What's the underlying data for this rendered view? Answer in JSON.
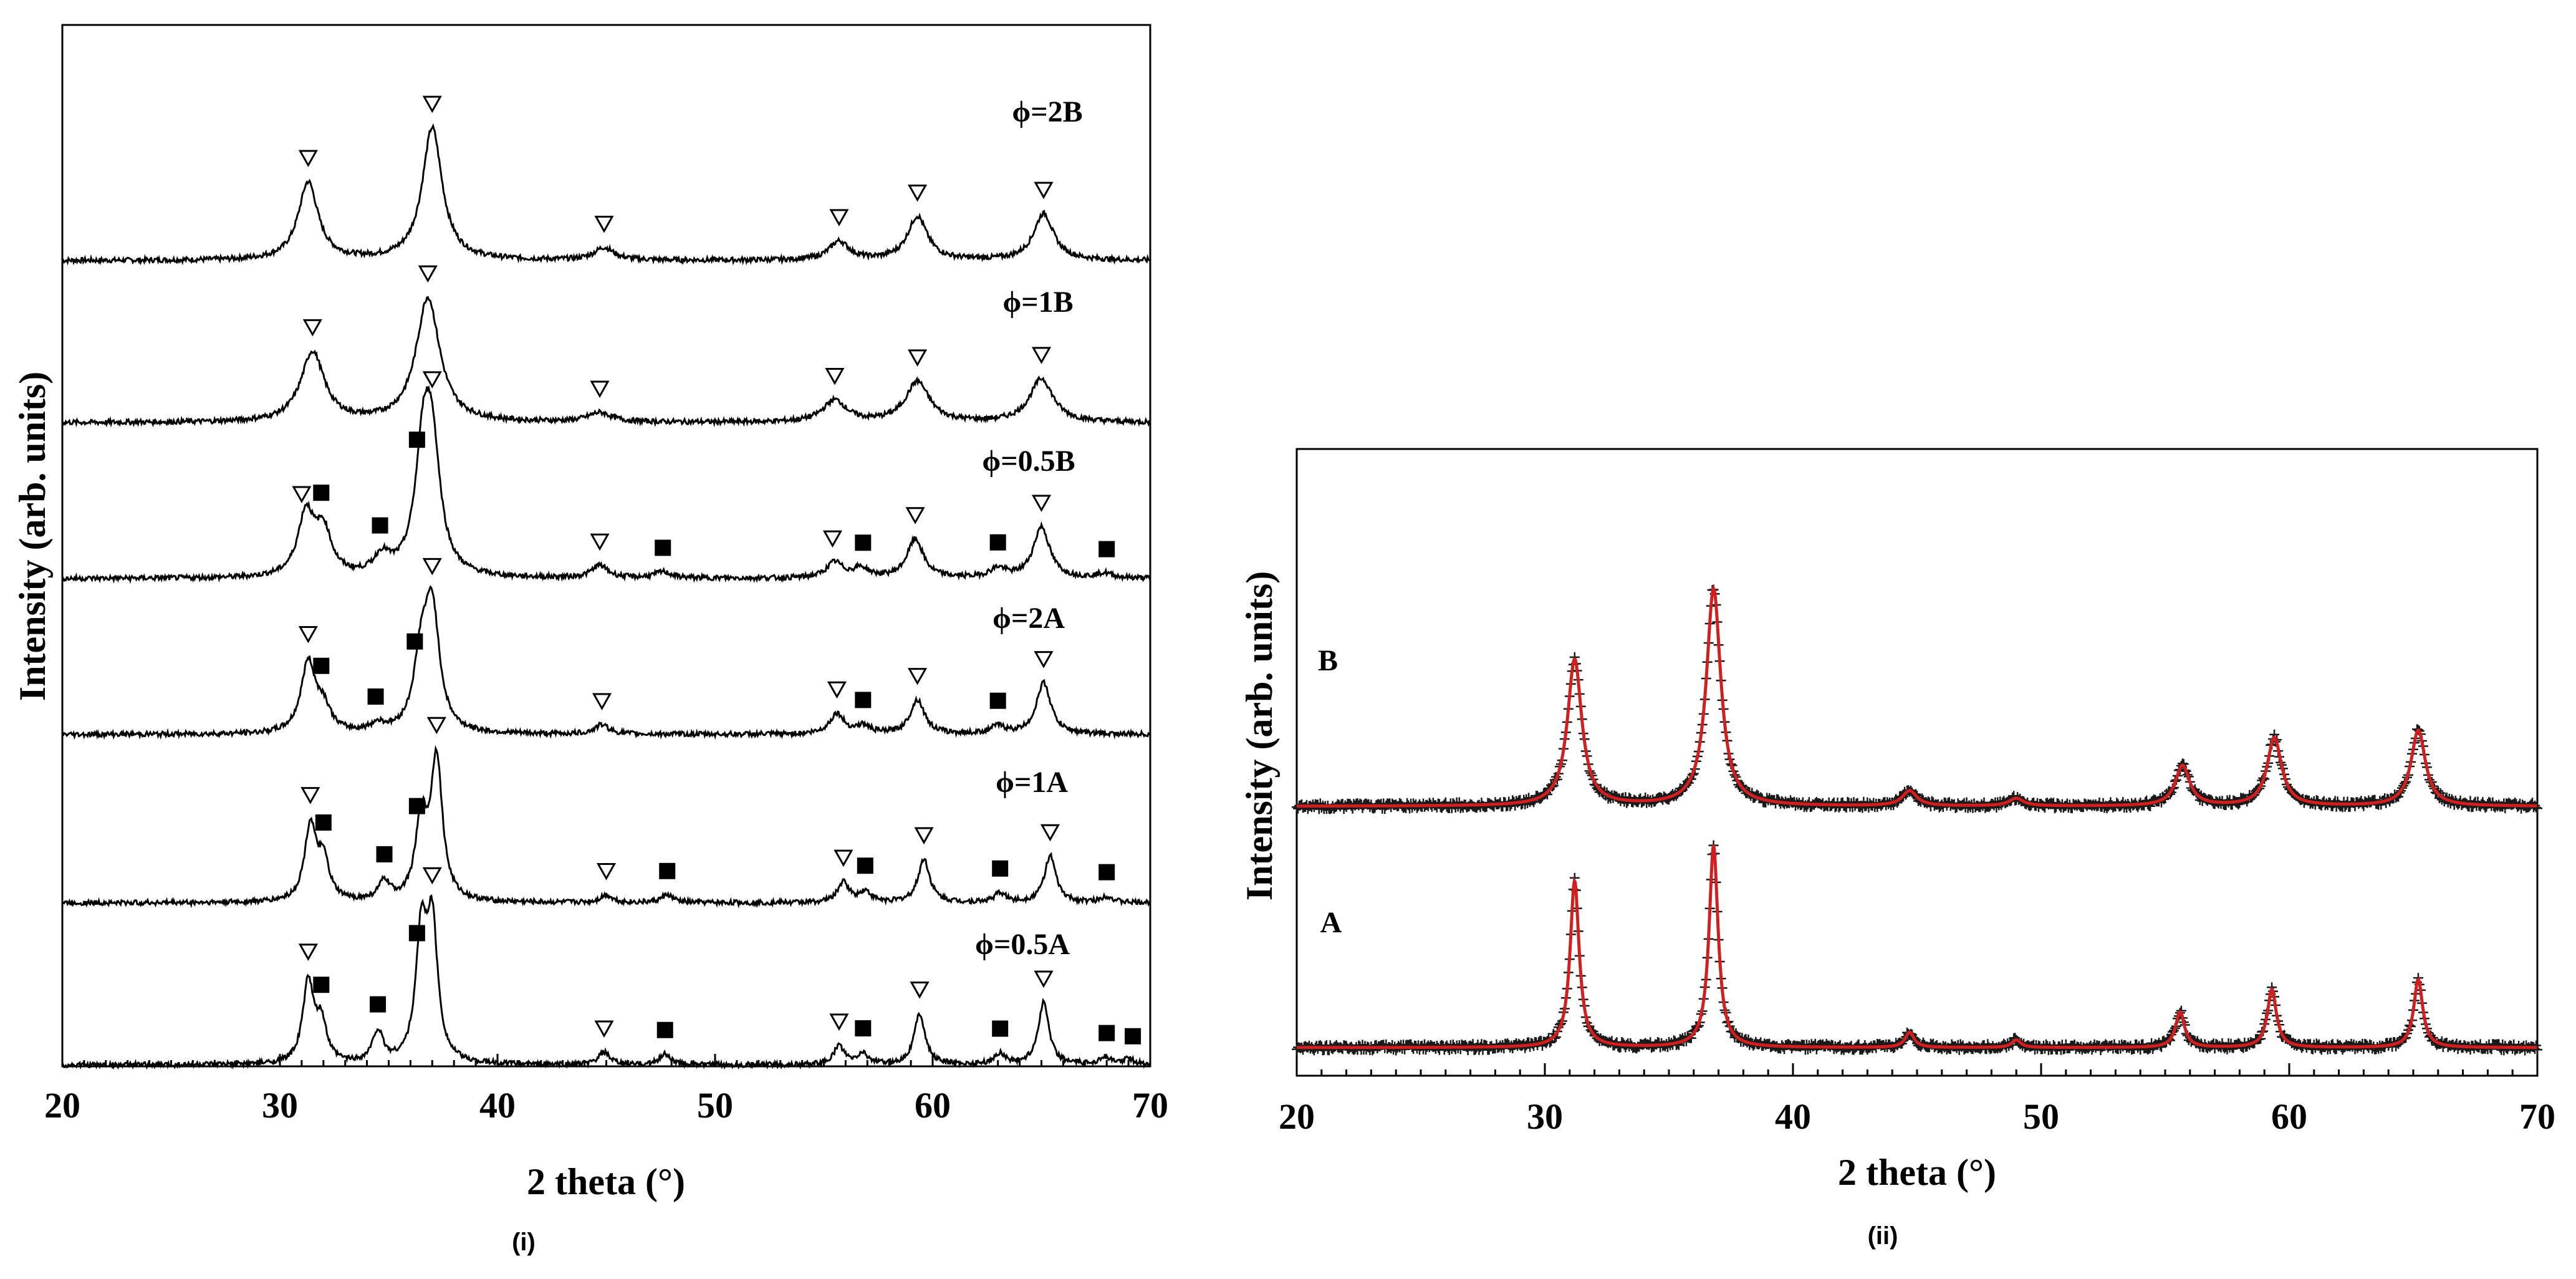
{
  "chart_data": [
    {
      "type": "line",
      "panel": "(i)",
      "xlabel": "2 theta (°)",
      "ylabel": "Intensity (arb. units)",
      "xlim": [
        20,
        70
      ],
      "xticks": [
        20,
        30,
        40,
        50,
        60,
        70
      ],
      "grid": false,
      "legend": "none",
      "markers": {
        "triangle": "open triangle (▽)",
        "square": "filled square (■)"
      },
      "series": [
        {
          "name": "ϕ=2B",
          "peaks": [
            [
              31.3,
              0.5
            ],
            [
              37.0,
              0.85
            ],
            [
              44.9,
              0.08
            ],
            [
              55.7,
              0.12
            ],
            [
              59.3,
              0.28
            ],
            [
              65.1,
              0.3
            ]
          ],
          "triangles": [
            31.3,
            37.0,
            44.9,
            55.7,
            59.3,
            65.1
          ],
          "squares": []
        },
        {
          "name": "ϕ=1B",
          "peaks": [
            [
              31.5,
              0.45
            ],
            [
              36.8,
              0.8
            ],
            [
              44.7,
              0.06
            ],
            [
              55.5,
              0.14
            ],
            [
              59.3,
              0.26
            ],
            [
              65.0,
              0.28
            ]
          ],
          "triangles": [
            31.5,
            36.8,
            44.7,
            55.5,
            59.3,
            65.0
          ],
          "squares": []
        },
        {
          "name": "ϕ=0.5B",
          "peaks": [
            [
              31.2,
              0.4
            ],
            [
              32.0,
              0.28
            ],
            [
              34.7,
              0.12
            ],
            [
              36.6,
              0.75
            ],
            [
              37.0,
              0.7
            ],
            [
              44.7,
              0.08
            ],
            [
              47.6,
              0.04
            ],
            [
              55.5,
              0.1
            ],
            [
              56.7,
              0.06
            ],
            [
              59.2,
              0.25
            ],
            [
              63.0,
              0.06
            ],
            [
              65.0,
              0.33
            ],
            [
              67.9,
              0.03
            ]
          ],
          "triangles": [
            31.0,
            37.0,
            44.7,
            55.4,
            59.2,
            65.0
          ],
          "squares": [
            31.9,
            34.6,
            36.3,
            47.6,
            56.8,
            63.0,
            68.0
          ]
        },
        {
          "name": "ϕ=2A",
          "peaks": [
            [
              31.3,
              0.45
            ],
            [
              32.0,
              0.15
            ],
            [
              34.5,
              0.05
            ],
            [
              36.5,
              0.45
            ],
            [
              37.0,
              0.75
            ],
            [
              44.8,
              0.06
            ],
            [
              55.6,
              0.13
            ],
            [
              56.8,
              0.05
            ],
            [
              59.3,
              0.22
            ],
            [
              63.0,
              0.05
            ],
            [
              65.1,
              0.33
            ]
          ],
          "triangles": [
            31.3,
            37.0,
            44.8,
            55.6,
            59.3,
            65.1
          ],
          "squares": [
            31.9,
            34.4,
            36.2,
            56.8,
            63.0
          ]
        },
        {
          "name": "ϕ=1A",
          "peaks": [
            [
              31.4,
              0.48
            ],
            [
              32.0,
              0.25
            ],
            [
              34.8,
              0.12
            ],
            [
              36.5,
              0.5
            ],
            [
              37.2,
              0.9
            ],
            [
              45.0,
              0.05
            ],
            [
              47.8,
              0.05
            ],
            [
              55.9,
              0.13
            ],
            [
              56.9,
              0.07
            ],
            [
              59.6,
              0.28
            ],
            [
              63.1,
              0.06
            ],
            [
              65.4,
              0.3
            ],
            [
              68.0,
              0.04
            ]
          ],
          "triangles": [
            31.4,
            37.2,
            45.0,
            55.9,
            59.6,
            65.4
          ],
          "squares": [
            32.0,
            34.8,
            36.3,
            47.8,
            56.9,
            63.1,
            68.0
          ]
        },
        {
          "name": "ϕ=0.5A",
          "peaks": [
            [
              31.3,
              0.52
            ],
            [
              31.9,
              0.25
            ],
            [
              34.5,
              0.2
            ],
            [
              36.5,
              0.8
            ],
            [
              37.0,
              0.85
            ],
            [
              44.9,
              0.08
            ],
            [
              47.7,
              0.07
            ],
            [
              55.7,
              0.12
            ],
            [
              56.8,
              0.07
            ],
            [
              59.4,
              0.33
            ],
            [
              63.1,
              0.07
            ],
            [
              65.1,
              0.4
            ],
            [
              67.9,
              0.05
            ],
            [
              69.0,
              0.04
            ]
          ],
          "triangles": [
            31.3,
            37.0,
            44.9,
            55.7,
            59.4,
            65.1
          ],
          "squares": [
            31.9,
            34.5,
            36.3,
            47.7,
            56.8,
            63.1,
            68.0,
            69.2
          ]
        }
      ]
    },
    {
      "type": "line",
      "panel": "(ii)",
      "xlabel": "2 theta (°)",
      "ylabel": "Intensity (arb. units)",
      "xlim": [
        20,
        70
      ],
      "xticks": [
        20,
        30,
        40,
        50,
        60,
        70
      ],
      "grid": false,
      "legend": "none",
      "series_style": {
        "observed": "black plus/star markers",
        "fit": "red line"
      },
      "series": [
        {
          "name": "B",
          "peaks": [
            [
              31.2,
              0.58
            ],
            [
              36.8,
              0.86
            ],
            [
              44.7,
              0.06
            ],
            [
              49.0,
              0.03
            ],
            [
              55.7,
              0.16
            ],
            [
              59.4,
              0.27
            ],
            [
              65.2,
              0.3
            ]
          ]
        },
        {
          "name": "A",
          "peaks": [
            [
              31.2,
              0.66
            ],
            [
              36.8,
              0.8
            ],
            [
              44.7,
              0.06
            ],
            [
              49.0,
              0.03
            ],
            [
              55.6,
              0.14
            ],
            [
              59.3,
              0.23
            ],
            [
              65.2,
              0.27
            ]
          ]
        }
      ]
    }
  ]
}
